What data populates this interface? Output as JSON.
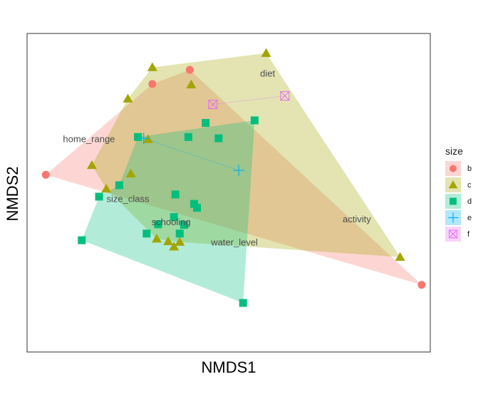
{
  "chart_data": {
    "type": "scatter",
    "title": "",
    "xlabel": "NMDS1",
    "ylabel": "NMDS2",
    "xlim": [
      -1.4,
      1.4
    ],
    "ylim": [
      -1.1,
      1.1
    ],
    "grid": false,
    "legend": {
      "title": "size",
      "position": "right"
    },
    "series": [
      {
        "name": "b",
        "color": "#F8766D",
        "shape": "circle",
        "points": [
          [
            -1.27,
            0.124
          ],
          [
            -0.53,
            0.751
          ],
          [
            -0.27,
            0.849
          ],
          [
            1.34,
            -0.636
          ]
        ],
        "hull": [
          [
            -1.27,
            0.124
          ],
          [
            -0.53,
            0.751
          ],
          [
            -0.27,
            0.849
          ],
          [
            1.34,
            -0.636
          ]
        ]
      },
      {
        "name": "c",
        "color": "#A3A500",
        "shape": "triangle",
        "points": [
          [
            0.26,
            0.964
          ],
          [
            -0.53,
            0.866
          ],
          [
            -0.26,
            0.747
          ],
          [
            -0.7,
            0.649
          ],
          [
            -0.56,
            0.369
          ],
          [
            -0.95,
            0.19
          ],
          [
            -0.68,
            0.132
          ],
          [
            -0.85,
            0.027
          ],
          [
            -0.5,
            -0.318
          ],
          [
            -0.42,
            -0.336
          ],
          [
            -0.38,
            -0.373
          ],
          [
            -0.34,
            -0.34
          ],
          [
            1.19,
            -0.444
          ]
        ],
        "hull": [
          [
            -0.95,
            0.19
          ],
          [
            -0.7,
            0.649
          ],
          [
            -0.53,
            0.866
          ],
          [
            0.26,
            0.964
          ],
          [
            1.19,
            -0.444
          ],
          [
            -0.34,
            -0.34
          ],
          [
            -0.5,
            -0.318
          ],
          [
            -0.85,
            0.027
          ]
        ]
      },
      {
        "name": "d",
        "color": "#00BF7D",
        "shape": "square",
        "points": [
          [
            -0.63,
            0.385
          ],
          [
            -0.16,
            0.482
          ],
          [
            -0.28,
            0.385
          ],
          [
            -0.07,
            0.376
          ],
          [
            0.18,
            0.5
          ],
          [
            -0.76,
            0.052
          ],
          [
            -0.9,
            -0.027
          ],
          [
            -0.37,
            -0.012
          ],
          [
            -0.24,
            -0.077
          ],
          [
            -0.22,
            -0.104
          ],
          [
            -0.38,
            -0.168
          ],
          [
            -0.49,
            -0.218
          ],
          [
            -0.31,
            -0.222
          ],
          [
            -0.57,
            -0.282
          ],
          [
            -0.34,
            -0.282
          ],
          [
            -1.02,
            -0.328
          ],
          [
            0.1,
            -0.761
          ]
        ],
        "hull": [
          [
            -0.63,
            0.385
          ],
          [
            0.18,
            0.5
          ],
          [
            0.1,
            -0.761
          ],
          [
            -1.02,
            -0.328
          ],
          [
            -0.9,
            -0.027
          ],
          [
            -0.76,
            0.052
          ]
        ]
      },
      {
        "name": "e",
        "color": "#00B0F6",
        "shape": "plus",
        "points": [
          [
            -0.59,
            0.376
          ],
          [
            0.07,
            0.154
          ]
        ],
        "hull": [
          [
            -0.59,
            0.376
          ],
          [
            0.07,
            0.154
          ]
        ]
      },
      {
        "name": "f",
        "color": "#E76BF3",
        "shape": "square-cross",
        "points": [
          [
            -0.11,
            0.61
          ],
          [
            0.39,
            0.669
          ]
        ],
        "hull": [
          [
            -0.11,
            0.61
          ],
          [
            0.39,
            0.669
          ]
        ]
      }
    ],
    "labels": [
      {
        "text": "diet",
        "x": 0.27,
        "y": 0.825
      },
      {
        "text": "home_range",
        "x": -0.97,
        "y": 0.372
      },
      {
        "text": "size_class",
        "x": -0.7,
        "y": -0.043
      },
      {
        "text": "schooling",
        "x": -0.4,
        "y": -0.203
      },
      {
        "text": "activity",
        "x": 0.89,
        "y": -0.181
      },
      {
        "text": "water_level",
        "x": 0.04,
        "y": -0.343
      }
    ]
  }
}
